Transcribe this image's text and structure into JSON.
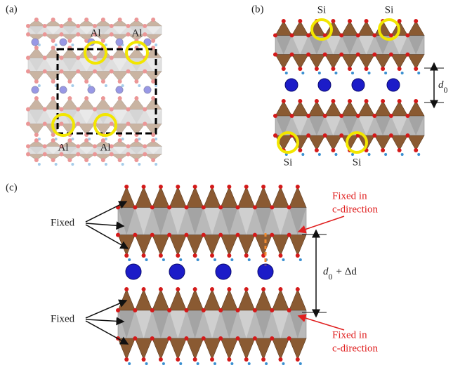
{
  "panels": [
    {
      "label": "(a)",
      "atom_labels": [
        "Al",
        "Al",
        "Al",
        "Al"
      ]
    },
    {
      "label": "(b)",
      "atom_labels": [
        "Si",
        "Si",
        "Si",
        "Si"
      ],
      "spacing": {
        "symbol": "d",
        "subscript": "0"
      }
    },
    {
      "label": "(c)",
      "side_labels": [
        "Fixed",
        "Fixed"
      ],
      "edge_labels": [
        [
          "Fixed in",
          "c-direction"
        ],
        [
          "Fixed in",
          "c-direction"
        ]
      ],
      "spacing": {
        "symbol": "d",
        "subscript": "0",
        "suffix": "+ Δd"
      }
    }
  ]
}
